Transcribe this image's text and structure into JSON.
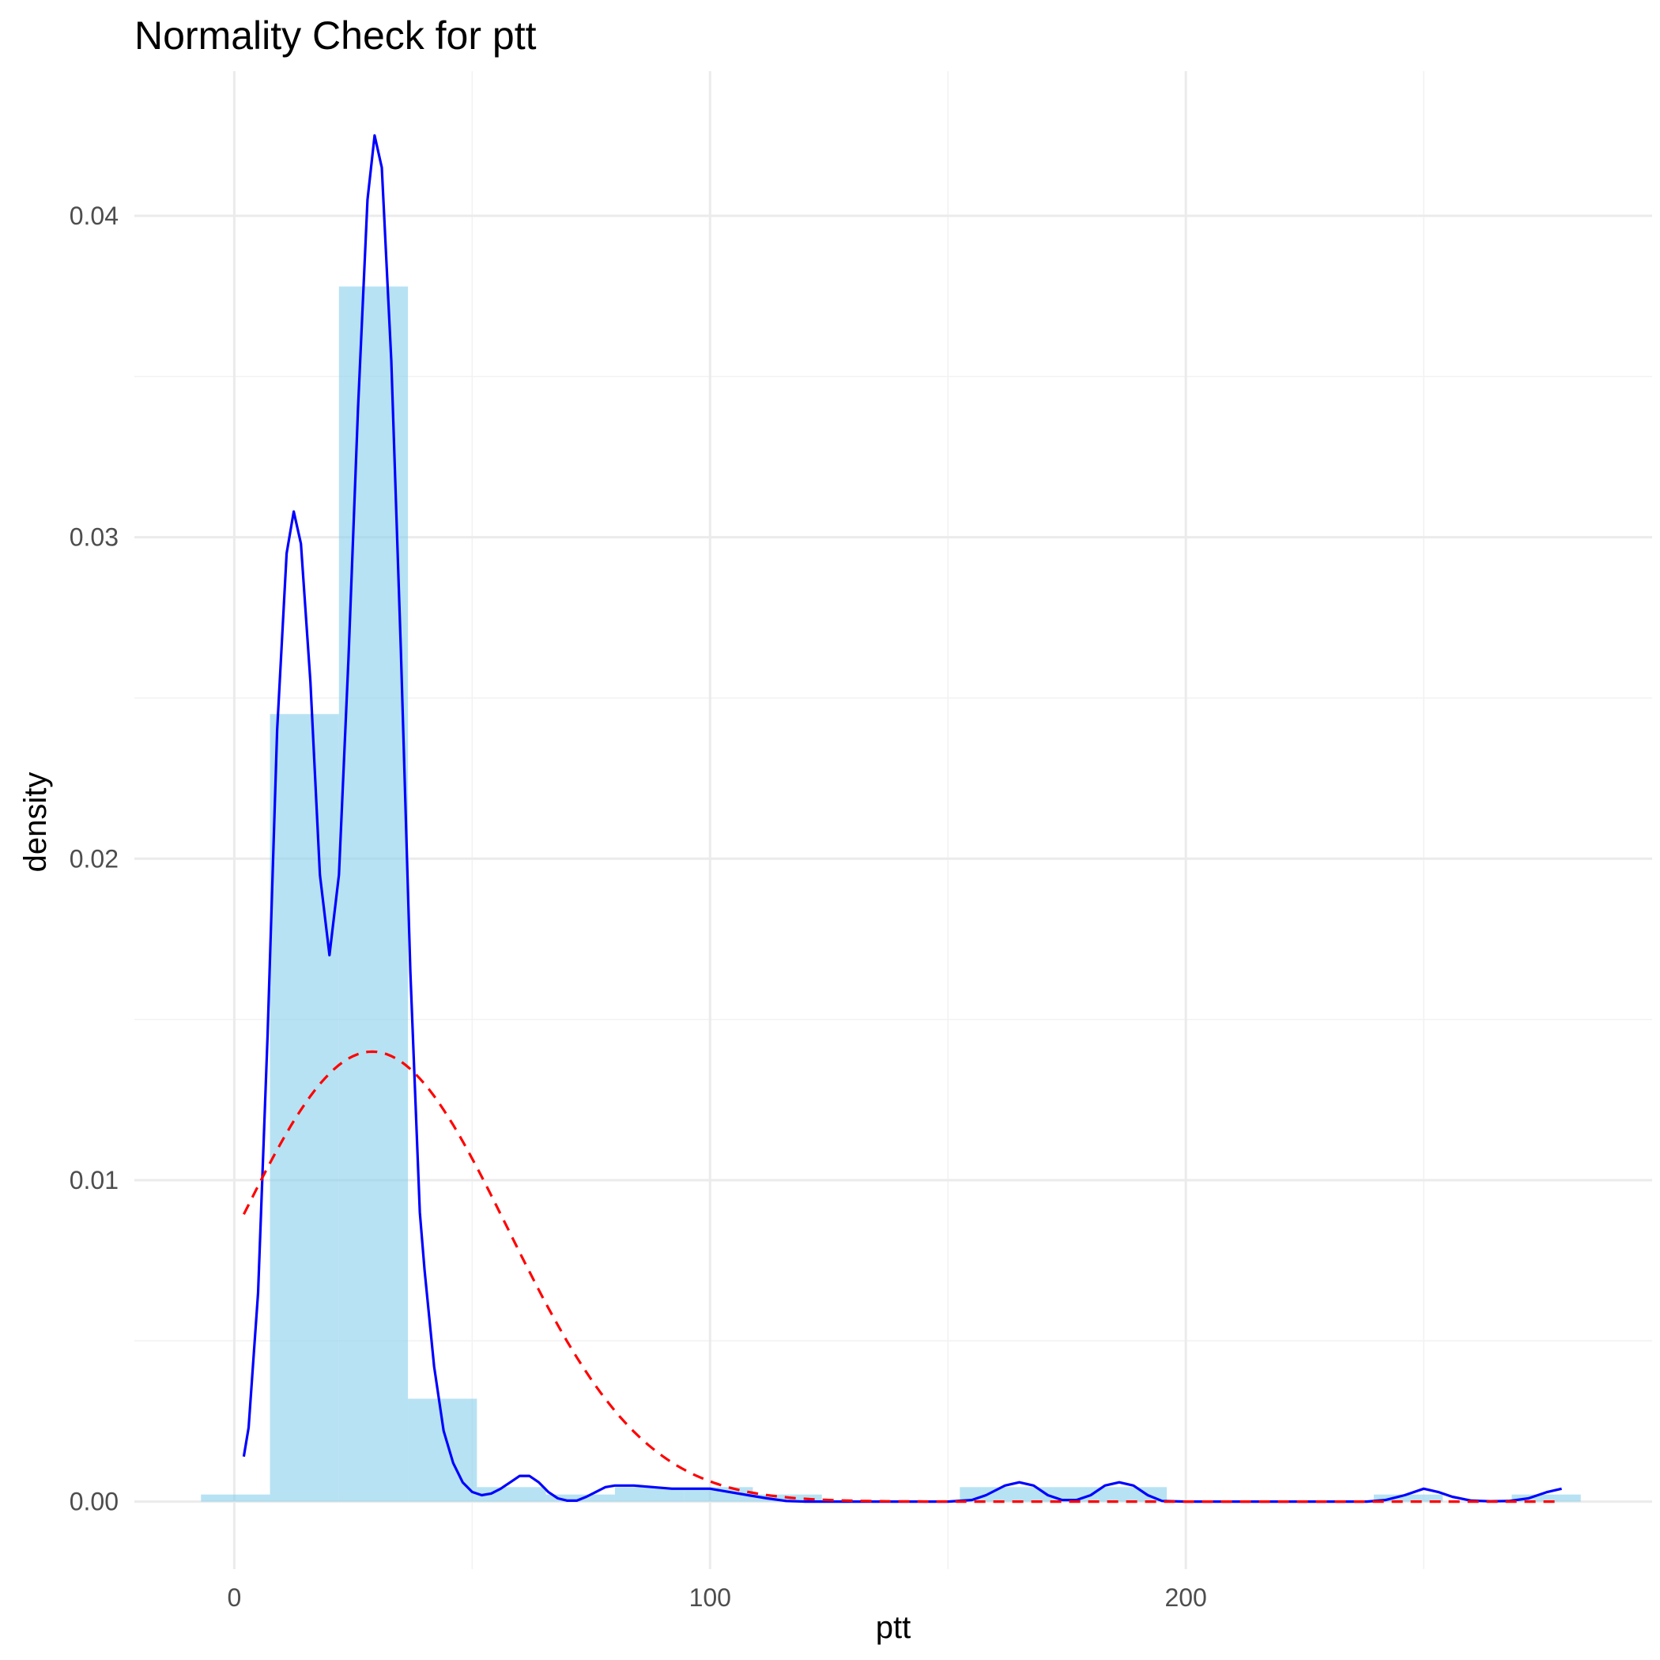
{
  "chart_data": {
    "type": "bar",
    "title": "Normality Check for ptt",
    "xlabel": "ptt",
    "ylabel": "density",
    "xlim": [
      -21,
      298
    ],
    "ylim": [
      -0.0021,
      0.0445
    ],
    "x_ticks": [
      0,
      100,
      200
    ],
    "x_tick_labels": [
      "0",
      "100",
      "200"
    ],
    "x_minor_ticks": [
      50,
      150,
      250
    ],
    "y_ticks": [
      0,
      0.01,
      0.02,
      0.03,
      0.04
    ],
    "y_tick_labels": [
      "0.00",
      "0.01",
      "0.02",
      "0.03",
      "0.04"
    ],
    "y_minor_ticks": [
      0.005,
      0.015,
      0.025,
      0.035
    ],
    "grid": true,
    "histogram": {
      "name": "histogram",
      "fill": "#87ceeb",
      "fill_opacity": 0.6,
      "bins": [
        {
          "x0": -7.0,
          "x1": 7.5,
          "value": 0.00022
        },
        {
          "x0": 7.5,
          "x1": 22.0,
          "value": 0.0245
        },
        {
          "x0": 22.0,
          "x1": 36.5,
          "value": 0.0378
        },
        {
          "x0": 36.5,
          "x1": 51.0,
          "value": 0.0032
        },
        {
          "x0": 51.0,
          "x1": 65.5,
          "value": 0.00045
        },
        {
          "x0": 65.5,
          "x1": 80.0,
          "value": 0.00022
        },
        {
          "x0": 80.0,
          "x1": 94.5,
          "value": 0.00045
        },
        {
          "x0": 94.5,
          "x1": 109.0,
          "value": 0.00045
        },
        {
          "x0": 109.0,
          "x1": 123.5,
          "value": 0.00022
        },
        {
          "x0": 123.5,
          "x1": 138.0,
          "value": 0
        },
        {
          "x0": 138.0,
          "x1": 152.5,
          "value": 0
        },
        {
          "x0": 152.5,
          "x1": 167.0,
          "value": 0.00045
        },
        {
          "x0": 167.0,
          "x1": 181.5,
          "value": 0.00045
        },
        {
          "x0": 181.5,
          "x1": 196.0,
          "value": 0.00045
        },
        {
          "x0": 196.0,
          "x1": 210.5,
          "value": 0
        },
        {
          "x0": 210.5,
          "x1": 225.0,
          "value": 0
        },
        {
          "x0": 225.0,
          "x1": 239.5,
          "value": 0
        },
        {
          "x0": 239.5,
          "x1": 254.0,
          "value": 0.00022
        },
        {
          "x0": 254.0,
          "x1": 268.5,
          "value": 0
        },
        {
          "x0": 268.5,
          "x1": 283.0,
          "value": 0.00022
        }
      ]
    },
    "series": [
      {
        "name": "kernel density",
        "color": "#0000ff",
        "style": "solid",
        "x": [
          2,
          3,
          5,
          7,
          9,
          11,
          12.5,
          14,
          16,
          18,
          20,
          22,
          24,
          26,
          28,
          29.5,
          31,
          33,
          35,
          37,
          39,
          40,
          42,
          44,
          46,
          48,
          50,
          52,
          54,
          56,
          58,
          60,
          62,
          64,
          66,
          68,
          70,
          72,
          74,
          76,
          78,
          80,
          84,
          88,
          92,
          96,
          100,
          104,
          108,
          112,
          116,
          120,
          125,
          130,
          135,
          140,
          145,
          150,
          155,
          158,
          162,
          165,
          168,
          171,
          174,
          177,
          180,
          183,
          186,
          189,
          192,
          195,
          200,
          210,
          220,
          230,
          238,
          242,
          246,
          250,
          253,
          256,
          260,
          264,
          268,
          272,
          276,
          279
        ],
        "values": [
          0.0014,
          0.0023,
          0.0065,
          0.0145,
          0.024,
          0.0295,
          0.0308,
          0.0298,
          0.0255,
          0.0195,
          0.017,
          0.0195,
          0.0262,
          0.034,
          0.0405,
          0.0425,
          0.0415,
          0.0355,
          0.0265,
          0.0165,
          0.009,
          0.0072,
          0.0042,
          0.0022,
          0.0012,
          0.0006,
          0.0003,
          0.0002,
          0.00025,
          0.0004,
          0.0006,
          0.0008,
          0.0008,
          0.0006,
          0.0003,
          0.0001,
          3e-05,
          3e-05,
          0.00015,
          0.0003,
          0.00045,
          0.0005,
          0.0005,
          0.00045,
          0.0004,
          0.0004,
          0.0004,
          0.0003,
          0.0002,
          0.0001,
          2e-05,
          0,
          0,
          0,
          0,
          0,
          0,
          0,
          5e-05,
          0.0002,
          0.0005,
          0.0006,
          0.0005,
          0.0002,
          5e-05,
          5e-05,
          0.0002,
          0.0005,
          0.0006,
          0.0005,
          0.0002,
          2e-05,
          0,
          0,
          0,
          0,
          0,
          5e-05,
          0.0002,
          0.0004,
          0.0003,
          0.00015,
          3e-05,
          1e-05,
          2e-05,
          0.0001,
          0.0003,
          0.0004
        ]
      },
      {
        "name": "normal fit",
        "color": "#ff0000",
        "style": "dashed",
        "mean": 29,
        "sd": 28.5,
        "x_range": [
          2,
          279
        ]
      }
    ]
  }
}
